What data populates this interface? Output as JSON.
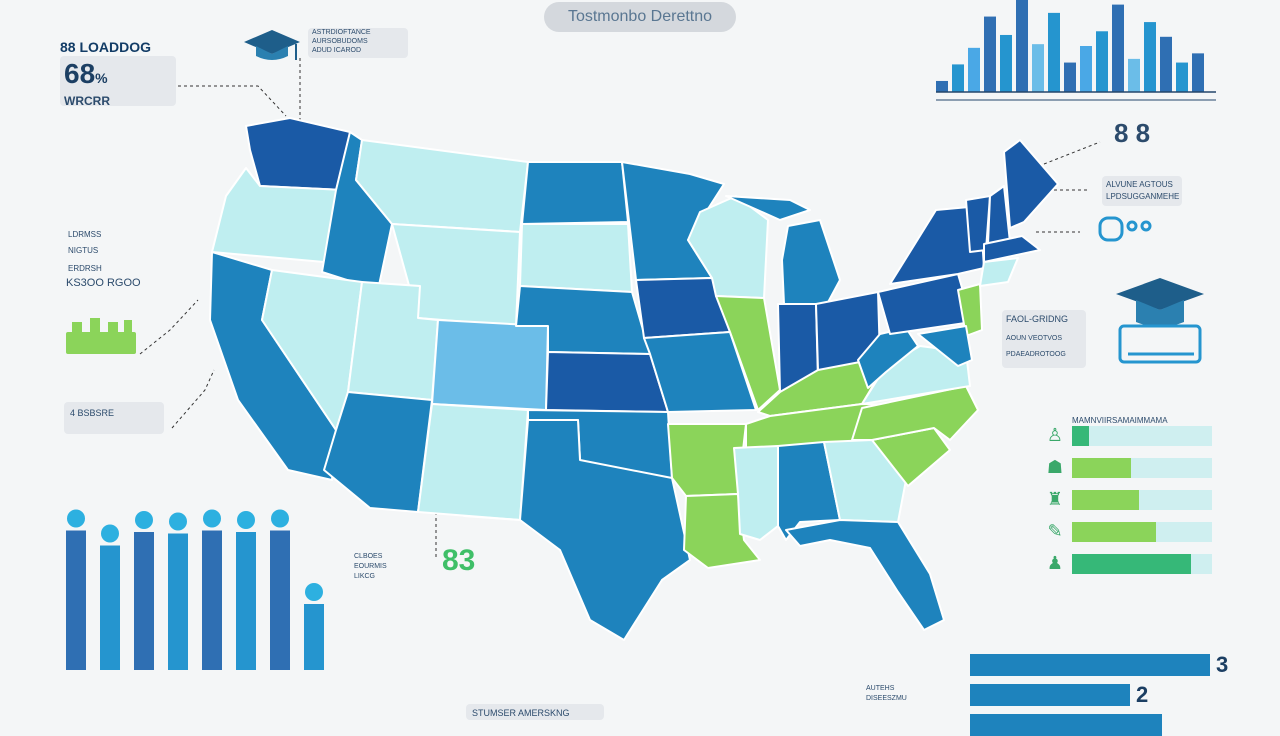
{
  "title": "Tostmonbo Derettno",
  "colors": {
    "background": "#f4f6f7",
    "navy": "#1a5aa6",
    "blue": "#1e83bd",
    "light_blue": "#6bbde8",
    "pale_teal": "#bfeef0",
    "green": "#8bd45a",
    "bar_blue": "#2f6fb3",
    "bar_teal": "#2595cf"
  },
  "top_left": {
    "heading": "88 LOADDOG",
    "value": "68",
    "value_suffix": "%",
    "subtitle": "WRCRR",
    "icon": "graduation-cap-icon"
  },
  "top_note": [
    "ASTRDIOFTANCE",
    "AURSOBUDOMS",
    "ADUD ICAROD"
  ],
  "left_notes": {
    "stack": [
      "LDRMSS",
      "NIGTUS",
      "ERDRSH"
    ],
    "number_label": "KS3OO RGOO",
    "small_label": "4 BSBSRE"
  },
  "right_notes": {
    "icon_label": "8 8",
    "note_a": [
      "ALVUNE AGTOUS",
      "LPDSUGGANMEHE"
    ],
    "icon_b": "people-icon",
    "note_b": [
      "FAOL-GRIDNG",
      "AOUN VEOTVOS",
      "PDAEADROTOOG"
    ],
    "icon_c": "graduation-cap-icon"
  },
  "center_number": "83",
  "center_label": [
    "CLBOES",
    "EOURMIS",
    "LIKCG"
  ],
  "legend_chart": {
    "header": "MAMNVIIRSAMAIMMAMA",
    "rows": [
      {
        "fill": 0.12,
        "color": "#36b878"
      },
      {
        "fill": 0.42,
        "color": "#8bd45a"
      },
      {
        "fill": 0.48,
        "color": "#8bd45a"
      },
      {
        "fill": 0.6,
        "color": "#8bd45a"
      },
      {
        "fill": 0.85,
        "color": "#36b878"
      }
    ]
  },
  "bottom_right_bars": [
    {
      "value": 3,
      "label": "3"
    },
    {
      "value": 2,
      "label": "2"
    },
    {
      "value": 2.4,
      "label": ""
    }
  ],
  "bottom_center_label": [
    "AUTEHS",
    "DISEESZMU"
  ],
  "bottom_note": "STUMSER AMERSKNG",
  "states": [
    {
      "id": "WA",
      "color": "#1a5aa6"
    },
    {
      "id": "OR",
      "color": "#bfeef0"
    },
    {
      "id": "CA",
      "color": "#1e83bd"
    },
    {
      "id": "ID",
      "color": "#1e83bd"
    },
    {
      "id": "NV",
      "color": "#bfeef0"
    },
    {
      "id": "MT",
      "color": "#bfeef0"
    },
    {
      "id": "WY",
      "color": "#bfeef0"
    },
    {
      "id": "UT",
      "color": "#bfeef0"
    },
    {
      "id": "AZ",
      "color": "#1e83bd"
    },
    {
      "id": "CO",
      "color": "#6bbde8"
    },
    {
      "id": "NM",
      "color": "#bfeef0"
    },
    {
      "id": "ND",
      "color": "#1e83bd"
    },
    {
      "id": "SD",
      "color": "#bfeef0"
    },
    {
      "id": "NE",
      "color": "#1e83bd"
    },
    {
      "id": "KS",
      "color": "#1a5aa6"
    },
    {
      "id": "OK",
      "color": "#1e83bd"
    },
    {
      "id": "TX",
      "color": "#1e83bd"
    },
    {
      "id": "MN",
      "color": "#1e83bd"
    },
    {
      "id": "IA",
      "color": "#1a5aa6"
    },
    {
      "id": "MO",
      "color": "#1e83bd"
    },
    {
      "id": "AR",
      "color": "#8bd45a"
    },
    {
      "id": "LA",
      "color": "#8bd45a"
    },
    {
      "id": "WI",
      "color": "#bfeef0"
    },
    {
      "id": "IL",
      "color": "#8bd45a"
    },
    {
      "id": "MI",
      "color": "#1e83bd"
    },
    {
      "id": "IN",
      "color": "#1a5aa6"
    },
    {
      "id": "OH",
      "color": "#1a5aa6"
    },
    {
      "id": "KY",
      "color": "#8bd45a"
    },
    {
      "id": "TN",
      "color": "#8bd45a"
    },
    {
      "id": "MS",
      "color": "#bfeef0"
    },
    {
      "id": "AL",
      "color": "#1e83bd"
    },
    {
      "id": "GA",
      "color": "#bfeef0"
    },
    {
      "id": "FL",
      "color": "#1e83bd"
    },
    {
      "id": "SC",
      "color": "#8bd45a"
    },
    {
      "id": "NC",
      "color": "#8bd45a"
    },
    {
      "id": "VA",
      "color": "#bfeef0"
    },
    {
      "id": "WV",
      "color": "#1e83bd"
    },
    {
      "id": "PA",
      "color": "#1a5aa6"
    },
    {
      "id": "NY",
      "color": "#1a5aa6"
    },
    {
      "id": "NJ",
      "color": "#8bd45a"
    },
    {
      "id": "MD",
      "color": "#1e83bd"
    },
    {
      "id": "VT",
      "color": "#1a5aa6"
    },
    {
      "id": "NH",
      "color": "#1a5aa6"
    },
    {
      "id": "ME",
      "color": "#1a5aa6"
    },
    {
      "id": "MA",
      "color": "#1a5aa6"
    },
    {
      "id": "CT",
      "color": "#bfeef0"
    }
  ],
  "lollipop_chart": {
    "values": [
      0.93,
      0.83,
      0.92,
      0.91,
      0.93,
      0.92,
      0.93,
      0.44
    ],
    "colors": [
      "#2f6fb3",
      "#2595cf",
      "#2f6fb3",
      "#2595cf",
      "#2f6fb3",
      "#2595cf",
      "#2f6fb3",
      "#2595cf"
    ]
  },
  "top_bar_chart": {
    "values": [
      0.12,
      0.3,
      0.48,
      0.82,
      0.62,
      1.0,
      0.52,
      0.86,
      0.32,
      0.5,
      0.66,
      0.95,
      0.36,
      0.76,
      0.6,
      0.32,
      0.42
    ],
    "colors": [
      "#2f6fb3",
      "#2595cf",
      "#4aa8e6",
      "#2f6fb3",
      "#2595cf",
      "#2f6fb3",
      "#6bbde8",
      "#2595cf",
      "#2f6fb3",
      "#4aa8e6",
      "#2595cf",
      "#2f6fb3",
      "#6bbde8",
      "#2595cf",
      "#2f6fb3",
      "#2595cf",
      "#2f6fb3"
    ]
  }
}
